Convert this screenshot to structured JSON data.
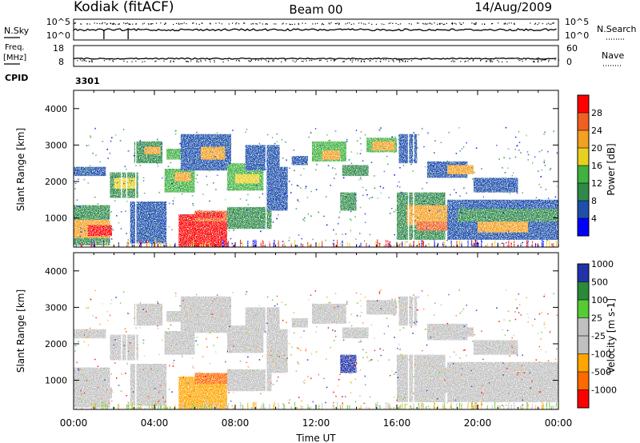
{
  "header": {
    "station": "Kodiak (fitACF)",
    "beam": "Beam 00",
    "date": "14/Aug/2009"
  },
  "noise_panel": {
    "left_label": "N.Sky",
    "right_label": "N.Search",
    "ticks_left": [
      "10^5",
      "10^0"
    ],
    "ticks_right": [
      "10^5",
      "10^0"
    ]
  },
  "freq_panel": {
    "left_label_line1": "Freq.",
    "left_label_line2": "[MHz]",
    "right_label": "Nave",
    "ticks_left": [
      "18",
      "8"
    ],
    "ticks_right": [
      "60",
      "0"
    ]
  },
  "cpid": {
    "label": "CPID",
    "value": "3301"
  },
  "colors": {
    "power_scale": [
      "#0000ff",
      "#1f4faa",
      "#2f8a4a",
      "#3fb23f",
      "#e8d020",
      "#f4a020",
      "#f06020",
      "#ff0000"
    ],
    "velocity_scale": [
      "#ff0000",
      "#ff6a00",
      "#ffa500",
      "#c0c0c0",
      "#c0c0c0",
      "#55cc33",
      "#2a8a3a",
      "#2233aa"
    ]
  },
  "chart_data": [
    {
      "type": "heatmap",
      "name": "power",
      "ylabel": "Slant Range [km]",
      "yticks": [
        "1000",
        "2000",
        "3000",
        "4000"
      ],
      "ylim": [
        200,
        4500
      ],
      "colorbar_label": "Power [dB]",
      "colorbar_ticks": [
        "4",
        "8",
        "12",
        "16",
        "20",
        "24",
        "28"
      ],
      "xlim": [
        "00:00",
        "24:00"
      ]
    },
    {
      "type": "heatmap",
      "name": "velocity",
      "xlabel": "Time UT",
      "ylabel": "Slant Range [km]",
      "yticks": [
        "1000",
        "2000",
        "3000",
        "4000"
      ],
      "ylim": [
        200,
        4500
      ],
      "colorbar_label": "Velocity [m s-1]",
      "colorbar_ticks": [
        "-1000",
        "-500",
        "-100",
        "-25",
        "25",
        "100",
        "500",
        "1000"
      ],
      "xticks": [
        "00:00",
        "04:00",
        "08:00",
        "12:00",
        "16:00",
        "20:00",
        "00:00"
      ]
    }
  ]
}
